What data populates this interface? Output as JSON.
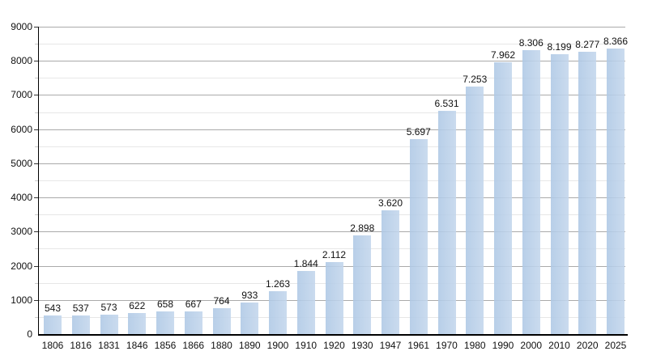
{
  "chart_data": {
    "type": "bar",
    "categories": [
      "1806",
      "1816",
      "1831",
      "1846",
      "1856",
      "1866",
      "1880",
      "1890",
      "1900",
      "1910",
      "1920",
      "1930",
      "1947",
      "1961",
      "1970",
      "1980",
      "1990",
      "2000",
      "2010",
      "2020",
      "2025"
    ],
    "values": [
      543,
      537,
      573,
      622,
      658,
      667,
      764,
      933,
      1263,
      1844,
      2112,
      2898,
      3620,
      5697,
      6531,
      7253,
      7962,
      8306,
      8199,
      8277,
      8366
    ],
    "value_labels": [
      "543",
      "537",
      "573",
      "622",
      "658",
      "667",
      "764",
      "933",
      "1.263",
      "1.844",
      "2.112",
      "2.898",
      "3.620",
      "5.697",
      "6.531",
      "7.253",
      "7.962",
      "8.306",
      "8.199",
      "8.277",
      "8.366"
    ],
    "ylim": [
      0,
      9000
    ],
    "y_major_step": 1000,
    "y_minor_step": 500,
    "y_tick_labels": [
      "0",
      "1000",
      "2000",
      "3000",
      "4000",
      "5000",
      "6000",
      "7000",
      "8000",
      "9000"
    ],
    "grid": "horizontal major and minor",
    "legend": "none",
    "colors": {
      "bar": "#aec8e5",
      "major_gridline": "#aaaaaa",
      "minor_gridline": "#e7e7e7",
      "axis": "#000000",
      "text": "#111111",
      "background": "#ffffff"
    }
  }
}
